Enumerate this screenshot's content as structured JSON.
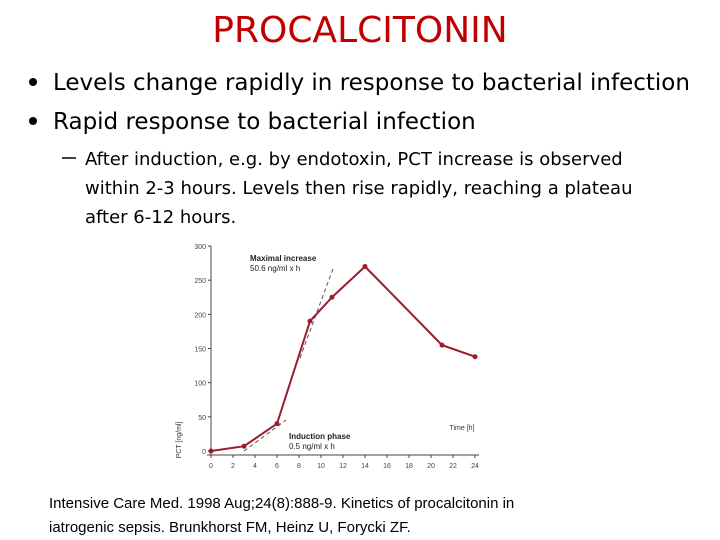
{
  "slide": {
    "title": "PROCALCITONIN",
    "bullets": [
      "Levels change rapidly in response to bacterial infection",
      "Rapid response to bacterial infection"
    ],
    "sub_bullet_lines": [
      "After induction, e.g. by endotoxin, PCT increase is observed",
      "within 2-3 hours. Levels then rise rapidly, reaching a plateau",
      "after 6-12 hours."
    ],
    "citation_lines": [
      "Intensive Care Med. 1998 Aug;24(8):888-9. Kinetics of procalcitonin in",
      "iatrogenic sepsis. Brunkhorst FM, Heinz U, Forycki ZF."
    ]
  },
  "chart_data": {
    "type": "line",
    "x_label": "Time [h]",
    "y_label": "PCT [ng/ml]",
    "x": [
      0,
      3,
      6,
      9,
      11,
      14,
      21,
      24
    ],
    "series": [
      {
        "name": "PCT",
        "color": "#9b1c2c",
        "values": [
          0,
          7,
          40,
          190,
          225,
          270,
          155,
          138
        ]
      }
    ],
    "xlim": [
      0,
      24
    ],
    "xticks": [
      0,
      2,
      4,
      6,
      8,
      10,
      12,
      14,
      16,
      18,
      20,
      22,
      24
    ],
    "ylim": [
      0,
      300
    ],
    "yticks": [
      0,
      50,
      100,
      150,
      200,
      250,
      300
    ],
    "annotations": [
      {
        "title": "Maximal increase",
        "text": "50.6 ng/ml x h"
      },
      {
        "title": "Induction phase",
        "text": "0.5 ng/ml x h"
      }
    ]
  }
}
